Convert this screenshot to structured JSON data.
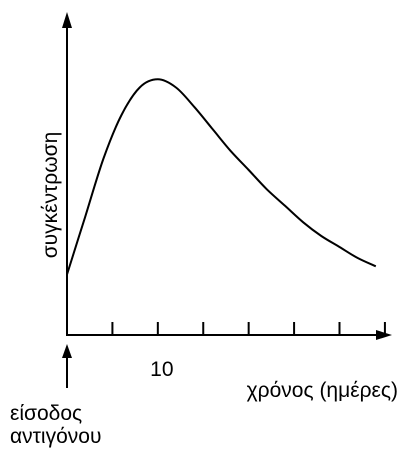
{
  "chart_data": {
    "type": "line",
    "title": "",
    "xlabel": "χρόνος (ημέρες)",
    "ylabel": "συγκέντρωση",
    "x_tick_labels": [
      {
        "x": 10,
        "label": "10"
      }
    ],
    "x_ticks": [
      5,
      10,
      15,
      20,
      25,
      30,
      35
    ],
    "xlim": [
      0,
      36
    ],
    "ylim": [
      0,
      100
    ],
    "grid": false,
    "y_ticks_shown": false,
    "annotations": [
      {
        "text_lines": [
          "είσοδος",
          "αντιγόνου"
        ],
        "x": 0
      }
    ],
    "series": [
      {
        "values_x": [
          0,
          2,
          4,
          6,
          8,
          10,
          12,
          14,
          16,
          18,
          20,
          22,
          24,
          26,
          28,
          30,
          32,
          34
        ],
        "values_y": [
          22,
          43,
          64,
          80,
          90,
          93,
          90,
          83,
          75,
          67,
          60,
          53,
          47,
          41,
          36,
          32,
          28,
          25
        ]
      }
    ],
    "colors": {
      "axis": "#000000",
      "line": "#000000"
    }
  }
}
